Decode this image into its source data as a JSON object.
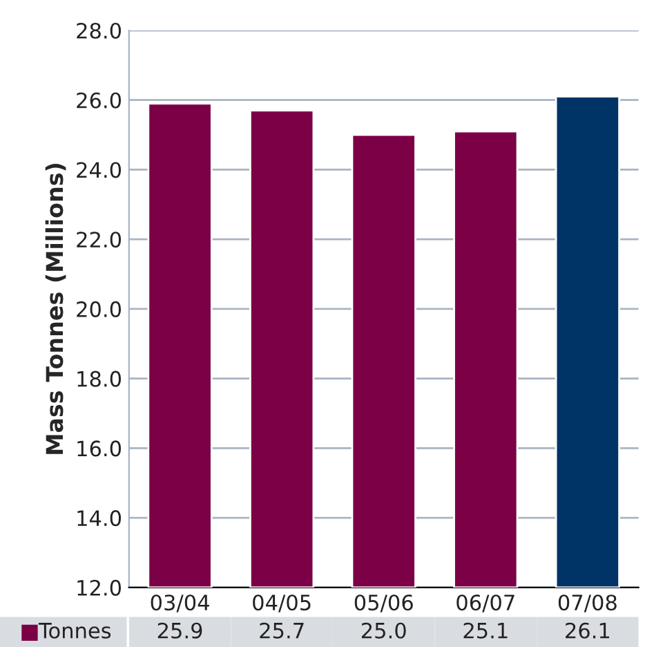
{
  "chart_data": {
    "type": "bar",
    "ylabel": "Mass Tonnes (Millions)",
    "categories": [
      "03/04",
      "04/05",
      "05/06",
      "06/07",
      "07/08"
    ],
    "series": [
      {
        "name": "Tonnes",
        "color": "#7b0046",
        "colors": [
          "#7b0046",
          "#7b0046",
          "#7b0046",
          "#7b0046",
          "#003466"
        ],
        "values": [
          25.9,
          25.7,
          25.0,
          25.1,
          26.1
        ],
        "value_labels": [
          "25.9",
          "25.7",
          "25.0",
          "25.1",
          "26.1"
        ]
      }
    ],
    "ylim": [
      12.0,
      28.0
    ],
    "yticks": [
      {
        "value": 12,
        "label": "12.0"
      },
      {
        "value": 14,
        "label": "14.0"
      },
      {
        "value": 16,
        "label": "16.0"
      },
      {
        "value": 18,
        "label": "18.0"
      },
      {
        "value": 20,
        "label": "20.0"
      },
      {
        "value": 22,
        "label": "22.0"
      },
      {
        "value": 24,
        "label": "24.0"
      },
      {
        "value": 26,
        "label": "26.0"
      },
      {
        "value": 28,
        "label": "28.0"
      }
    ],
    "grid": "y",
    "legend": "bottom left"
  }
}
